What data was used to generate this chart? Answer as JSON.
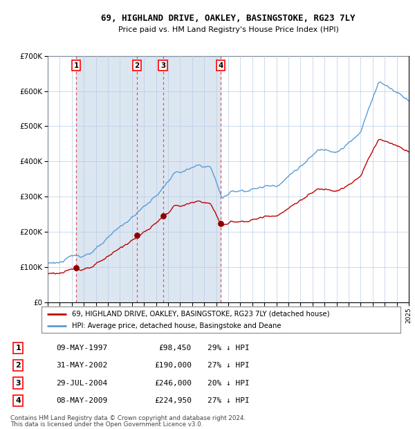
{
  "title": "69, HIGHLAND DRIVE, OAKLEY, BASINGSTOKE, RG23 7LY",
  "subtitle": "Price paid vs. HM Land Registry's House Price Index (HPI)",
  "legend_line1": "69, HIGHLAND DRIVE, OAKLEY, BASINGSTOKE, RG23 7LY (detached house)",
  "legend_line2": "HPI: Average price, detached house, Basingstoke and Deane",
  "footer1": "Contains HM Land Registry data © Crown copyright and database right 2024.",
  "footer2": "This data is licensed under the Open Government Licence v3.0.",
  "hpi_color": "#5b9bd5",
  "price_color": "#c00000",
  "dot_color": "#8b0000",
  "bg_color": "#dce6f1",
  "plot_bg": "#ffffff",
  "grid_color": "#b8cce4",
  "dashed_color": "#e05050",
  "ylim": [
    0,
    700000
  ],
  "yticks": [
    0,
    100000,
    200000,
    300000,
    400000,
    500000,
    600000,
    700000
  ],
  "xstart": 1995,
  "xend": 2025,
  "sale_nums": [
    1,
    2,
    3,
    4
  ],
  "sale_years": [
    1997.356,
    2002.414,
    2004.572,
    2009.356
  ],
  "sale_prices": [
    98450,
    190000,
    246000,
    224950
  ],
  "sale_dates_str": [
    "09-MAY-1997",
    "31-MAY-2002",
    "29-JUL-2004",
    "08-MAY-2009"
  ],
  "sale_price_str": [
    "£98,450",
    "£190,000",
    "£246,000",
    "£224,950"
  ],
  "sale_hpi_str": [
    "29% ↓ HPI",
    "27% ↓ HPI",
    "20% ↓ HPI",
    "27% ↓ HPI"
  ]
}
